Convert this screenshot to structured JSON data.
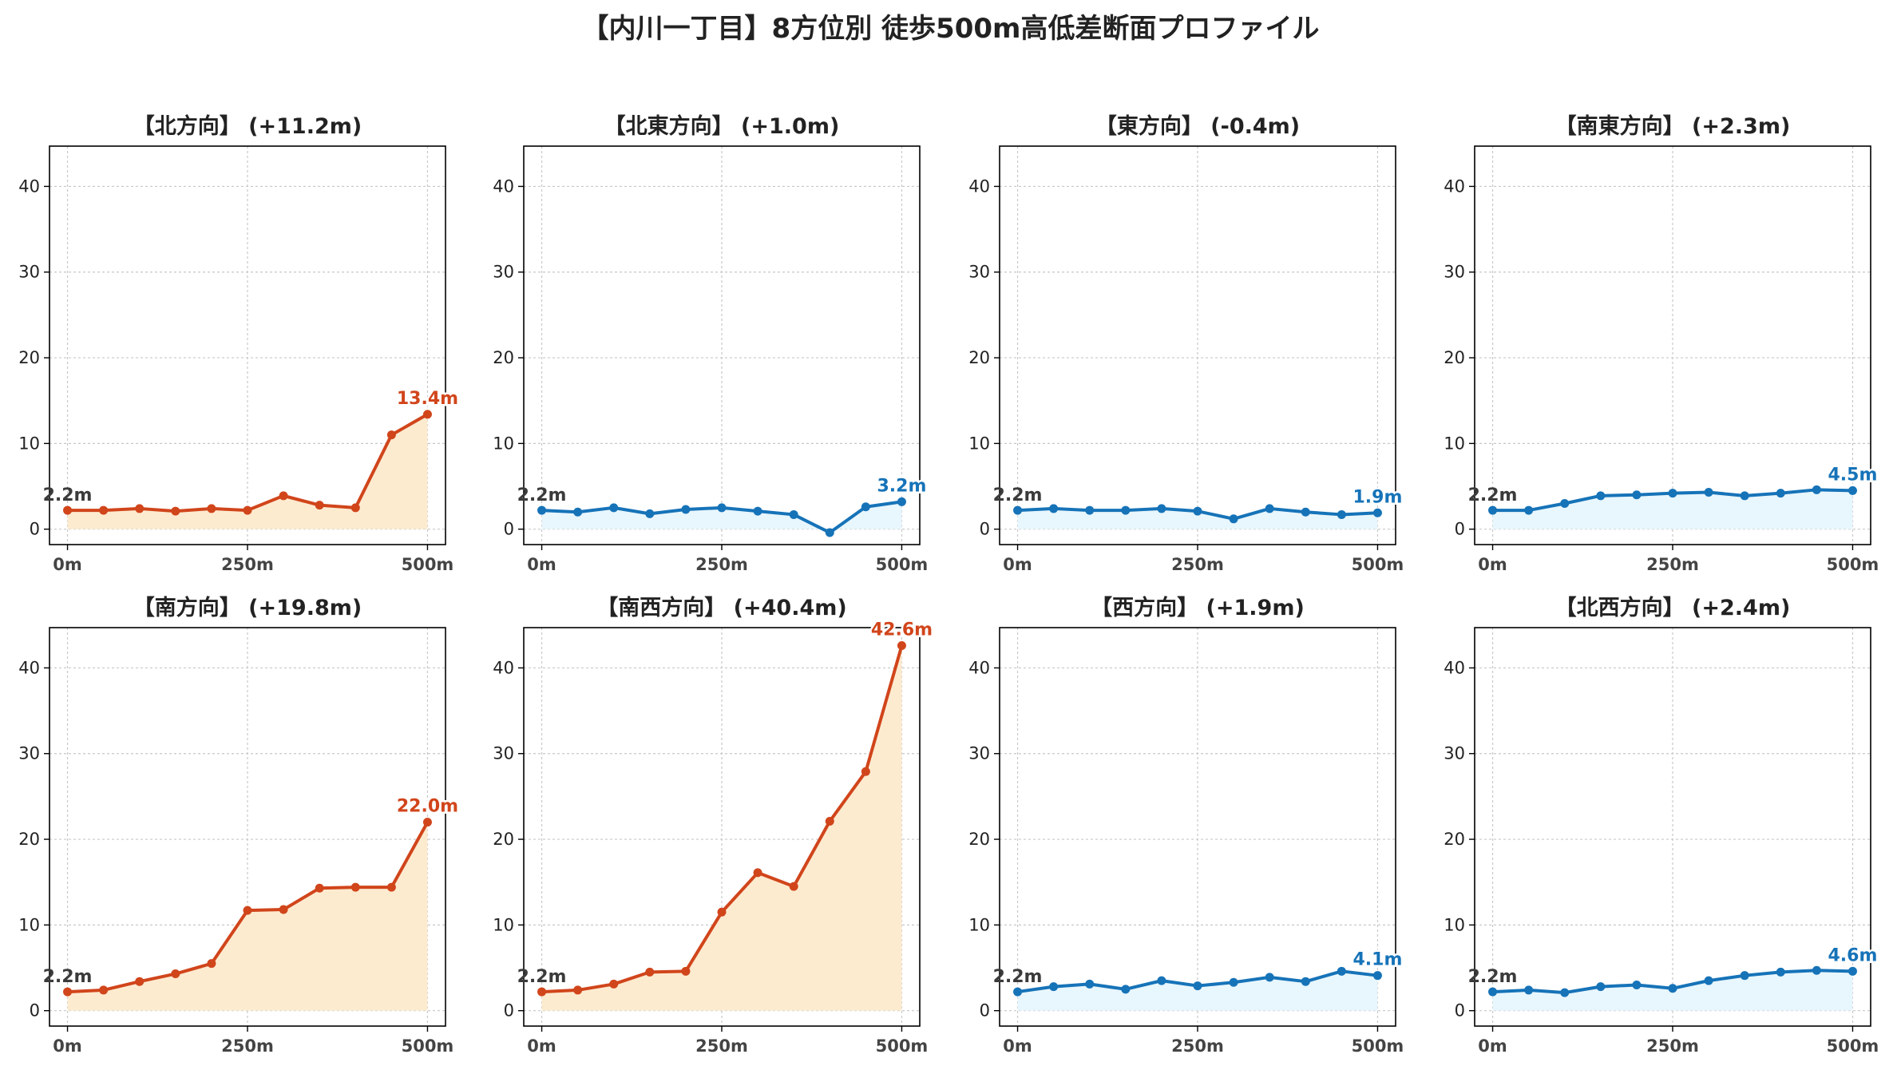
{
  "title": "【内川一丁目】8方位別 徒歩500m高低差断面プロファイル",
  "colors": {
    "up_line": "#d1451b",
    "up_fill": "#fdebd0",
    "flat_line": "#1673b8",
    "flat_fill": "#e8f6fd",
    "start_label": "#3b3b3b",
    "grid": "#c8c8c8"
  },
  "chart_data": [
    {
      "type": "line",
      "title": "【北方向】 (+11.2m)",
      "trend": "up",
      "x": [
        0,
        50,
        100,
        150,
        200,
        250,
        300,
        350,
        400,
        450,
        500
      ],
      "y": [
        2.2,
        2.2,
        2.4,
        2.1,
        2.4,
        2.2,
        3.9,
        2.8,
        2.5,
        11.0,
        13.4
      ],
      "start_label": "2.2m",
      "end_label": "13.4m"
    },
    {
      "type": "line",
      "title": "【北東方向】 (+1.0m)",
      "trend": "flat",
      "x": [
        0,
        50,
        100,
        150,
        200,
        250,
        300,
        350,
        400,
        450,
        500
      ],
      "y": [
        2.2,
        2.0,
        2.5,
        1.8,
        2.3,
        2.5,
        2.1,
        1.7,
        -0.4,
        2.6,
        3.2
      ],
      "start_label": "2.2m",
      "end_label": "3.2m"
    },
    {
      "type": "line",
      "title": "【東方向】 (-0.4m)",
      "trend": "flat",
      "x": [
        0,
        50,
        100,
        150,
        200,
        250,
        300,
        350,
        400,
        450,
        500
      ],
      "y": [
        2.2,
        2.4,
        2.2,
        2.2,
        2.4,
        2.1,
        1.2,
        2.4,
        2.0,
        1.7,
        1.9
      ],
      "start_label": "2.2m",
      "end_label": "1.9m"
    },
    {
      "type": "line",
      "title": "【南東方向】 (+2.3m)",
      "trend": "flat",
      "x": [
        0,
        50,
        100,
        150,
        200,
        250,
        300,
        350,
        400,
        450,
        500
      ],
      "y": [
        2.2,
        2.2,
        3.0,
        3.9,
        4.0,
        4.2,
        4.3,
        3.9,
        4.2,
        4.6,
        4.5
      ],
      "start_label": "2.2m",
      "end_label": "4.5m"
    },
    {
      "type": "line",
      "title": "【南方向】 (+19.8m)",
      "trend": "up",
      "x": [
        0,
        50,
        100,
        150,
        200,
        250,
        300,
        350,
        400,
        450,
        500
      ],
      "y": [
        2.2,
        2.4,
        3.4,
        4.3,
        5.5,
        11.7,
        11.8,
        14.3,
        14.4,
        14.4,
        22.0
      ],
      "start_label": "2.2m",
      "end_label": "22.0m"
    },
    {
      "type": "line",
      "title": "【南西方向】 (+40.4m)",
      "trend": "up",
      "x": [
        0,
        50,
        100,
        150,
        200,
        250,
        300,
        350,
        400,
        450,
        500
      ],
      "y": [
        2.2,
        2.4,
        3.1,
        4.5,
        4.6,
        11.5,
        16.1,
        14.5,
        22.1,
        27.9,
        42.6
      ],
      "start_label": "2.2m",
      "end_label": "42.6m"
    },
    {
      "type": "line",
      "title": "【西方向】 (+1.9m)",
      "trend": "flat",
      "x": [
        0,
        50,
        100,
        150,
        200,
        250,
        300,
        350,
        400,
        450,
        500
      ],
      "y": [
        2.2,
        2.8,
        3.1,
        2.5,
        3.5,
        2.9,
        3.3,
        3.9,
        3.4,
        4.6,
        4.1
      ],
      "start_label": "2.2m",
      "end_label": "4.1m"
    },
    {
      "type": "line",
      "title": "【北西方向】 (+2.4m)",
      "trend": "flat",
      "x": [
        0,
        50,
        100,
        150,
        200,
        250,
        300,
        350,
        400,
        450,
        500
      ],
      "y": [
        2.2,
        2.4,
        2.1,
        2.8,
        3.0,
        2.6,
        3.5,
        4.1,
        4.5,
        4.7,
        4.6
      ],
      "start_label": "2.2m",
      "end_label": "4.6m"
    }
  ],
  "axes": {
    "xticks": [
      0,
      250,
      500
    ],
    "xtick_labels": [
      "0m",
      "250m",
      "500m"
    ],
    "yticks": [
      0,
      10,
      20,
      30,
      40
    ],
    "ytick_labels": [
      "0",
      "10",
      "20",
      "30",
      "40"
    ],
    "xlim": [
      -25,
      525
    ],
    "ylim": [
      -1.8,
      44.7
    ],
    "grid": true
  }
}
